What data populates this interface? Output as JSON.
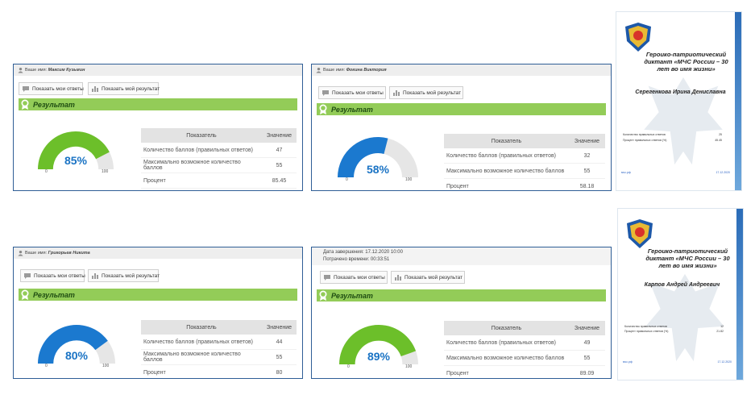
{
  "panels": [
    {
      "user_prefix": "Ваше имя:",
      "user_name": "Максим Кузьмин",
      "btn_answers": "Показать мои ответы",
      "btn_result": "Показать мой результат",
      "result_title": "Результат",
      "gauge_pct": 85,
      "gauge_text": "85%",
      "gauge_color": "#6cbf2a",
      "gauge_min": "0",
      "gauge_max": "100",
      "th_indicator": "Показатель",
      "th_value": "Значение",
      "rows": [
        {
          "label": "Количество баллов (правильных ответов)",
          "value": "47"
        },
        {
          "label": "Максимально возможное количество баллов",
          "value": "55"
        },
        {
          "label": "Процент",
          "value": "85.45"
        }
      ]
    },
    {
      "user_prefix": "Ваше имя:",
      "user_name": "Фокина Виктория",
      "btn_answers": "Показать мои ответы",
      "btn_result": "Показать мой результат",
      "result_title": "Результат",
      "gauge_pct": 58,
      "gauge_text": "58%",
      "gauge_color": "#1b79cf",
      "gauge_min": "0",
      "gauge_max": "100",
      "th_indicator": "Показатель",
      "th_value": "Значение",
      "rows": [
        {
          "label": "Количество баллов (правильных ответов)",
          "value": "32"
        },
        {
          "label": "Максимально возможное количество баллов",
          "value": "55"
        },
        {
          "label": "Процент",
          "value": "58.18"
        }
      ]
    },
    {
      "user_prefix": "Ваше имя:",
      "user_name": "Григорьев Никита",
      "btn_answers": "Показать мои ответы",
      "btn_result": "Показать мой результат",
      "result_title": "Результат",
      "gauge_pct": 80,
      "gauge_text": "80%",
      "gauge_color": "#1b79cf",
      "gauge_min": "0",
      "gauge_max": "100",
      "th_indicator": "Показатель",
      "th_value": "Значение",
      "rows": [
        {
          "label": "Количество баллов (правильных ответов)",
          "value": "44"
        },
        {
          "label": "Максимально возможное количество баллов",
          "value": "55"
        },
        {
          "label": "Процент",
          "value": "80"
        }
      ]
    },
    {
      "finish_date": "Дата завершения: 17.12.2020 10:00",
      "time_spent": "Потрачено времени: 00:33:51",
      "btn_answers": "Показать мои ответы",
      "btn_result": "Показать мой результат",
      "result_title": "Результат",
      "gauge_pct": 89,
      "gauge_text": "89%",
      "gauge_color": "#6cbf2a",
      "gauge_min": "0",
      "gauge_max": "100",
      "th_indicator": "Показатель",
      "th_value": "Значение",
      "rows": [
        {
          "label": "Количество баллов (правильных ответов)",
          "value": "49"
        },
        {
          "label": "Максимально возможное количество баллов",
          "value": "55"
        },
        {
          "label": "Процент",
          "value": "89.09"
        }
      ]
    }
  ],
  "certificates": [
    {
      "emblem_text": "МЧС РОССИИ",
      "title": "Героико-патриотический диктант «МЧС России – 30 лет во имя жизни»",
      "name": "Серегенкова Ирина Дениславна",
      "row1_label": "Количество правильных ответов",
      "row1_value": "25",
      "row2_label": "Процент правильных ответов (%)",
      "row2_value": "45.45",
      "foot_left": "мчс.рф",
      "foot_right": "17.12.2020"
    },
    {
      "emblem_text": "МЧС РОССИИ",
      "title": "Героико-патриотический диктант «МЧС России – 30 лет во имя жизни»",
      "name": "Карпов Андрей Андреевич",
      "row1_label": "Количество правильных ответов",
      "row1_value": "12",
      "row2_label": "Процент правильных ответов (%)",
      "row2_value": "21.82",
      "foot_left": "мчс.рф",
      "foot_right": "17.12.2020"
    }
  ]
}
